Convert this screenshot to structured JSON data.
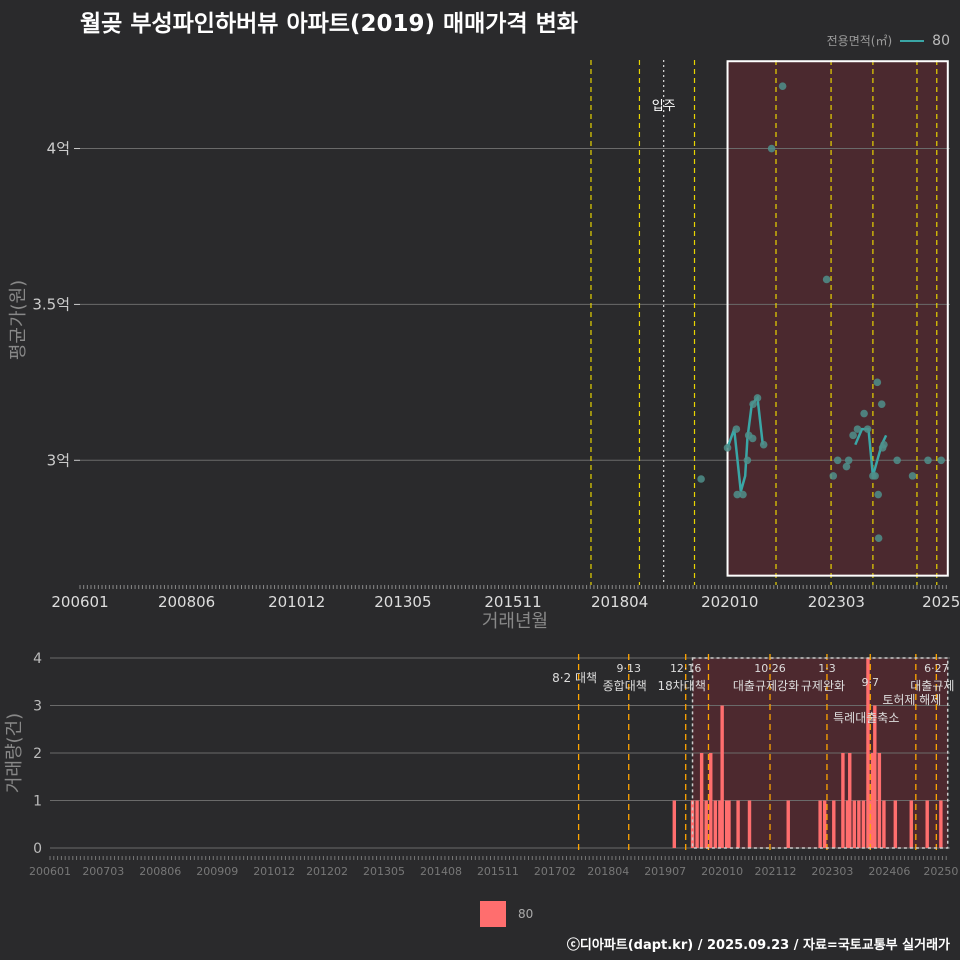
{
  "title": "월곶 부성파인하버뷰 아파트(2019) 매매가격 변화",
  "legend_top": {
    "title": "전용면적(㎡)",
    "value": "80"
  },
  "legend_bottom": {
    "value": "80"
  },
  "footer": "ⓒ디아파트(dapt.kr) / 2025.09.23 / 자료=국토교통부 실거래가",
  "colors": {
    "background": "#2a2a2c",
    "line": "#3aa6a6",
    "bar": "#ff6e6e",
    "policy_line": "#e8d400",
    "policy_line_bottom": "#ffa500",
    "highlight": "#5a2a30"
  },
  "chart_data": [
    {
      "type": "line",
      "title": "월곶 부성파인하버뷰 아파트(2019) 매매가격 변화",
      "xlabel": "거래년월",
      "ylabel": "평균가(원)",
      "x_ticks": [
        "200601",
        "200806",
        "201012",
        "201305",
        "201511",
        "201804",
        "202010",
        "202303",
        "2025"
      ],
      "y_ticks": [
        "3억",
        "3.5억",
        "4억"
      ],
      "y_tick_values": [
        3.0,
        3.5,
        4.0
      ],
      "ylim": [
        2.6,
        4.3
      ],
      "xlim": [
        2006.0,
        2025.75
      ],
      "annotation": "입주",
      "annotation_x": 2019.25,
      "policy_lines_x": [
        2017.6,
        2018.7,
        2019.95,
        2021.8,
        2023.05,
        2024.0,
        2025.0,
        2025.45
      ],
      "highlight_x": [
        2020.7,
        2025.7
      ],
      "highlight_y": [
        2.63,
        4.28
      ],
      "series": [
        {
          "name": "80",
          "points": [
            [
              2020.1,
              2.94
            ],
            [
              2020.7,
              3.04
            ],
            [
              2020.9,
              3.1
            ],
            [
              2020.92,
              2.89
            ],
            [
              2021.05,
              2.89
            ],
            [
              2021.15,
              3.0
            ],
            [
              2021.18,
              3.08
            ],
            [
              2021.27,
              3.07
            ],
            [
              2021.28,
              3.18
            ],
            [
              2021.38,
              3.2
            ],
            [
              2021.52,
              3.05
            ],
            [
              2021.7,
              4.0
            ],
            [
              2021.95,
              4.2
            ],
            [
              2022.95,
              3.58
            ],
            [
              2023.1,
              2.95
            ],
            [
              2023.2,
              3.0
            ],
            [
              2023.4,
              2.98
            ],
            [
              2023.45,
              3.0
            ],
            [
              2023.55,
              3.08
            ],
            [
              2023.65,
              3.1
            ],
            [
              2023.8,
              3.15
            ],
            [
              2023.88,
              3.1
            ],
            [
              2024.0,
              2.95
            ],
            [
              2024.05,
              2.95
            ],
            [
              2024.1,
              3.25
            ],
            [
              2024.12,
              2.89
            ],
            [
              2024.13,
              2.75
            ],
            [
              2024.2,
              3.18
            ],
            [
              2024.22,
              3.04
            ],
            [
              2024.25,
              3.05
            ],
            [
              2024.55,
              3.0
            ],
            [
              2024.9,
              2.95
            ],
            [
              2025.25,
              3.0
            ],
            [
              2025.55,
              3.0
            ]
          ],
          "line": [
            [
              2020.7,
              3.04
            ],
            [
              2020.85,
              3.1
            ],
            [
              2021.0,
              2.9
            ],
            [
              2021.1,
              2.95
            ],
            [
              2021.15,
              3.07
            ],
            [
              2021.25,
              3.18
            ],
            [
              2021.38,
              3.2
            ],
            [
              2021.5,
              3.05
            ]
          ],
          "line2": [
            [
              2023.6,
              3.05
            ],
            [
              2023.75,
              3.1
            ],
            [
              2023.9,
              3.1
            ],
            [
              2024.0,
              2.95
            ],
            [
              2024.1,
              3.0
            ],
            [
              2024.2,
              3.05
            ],
            [
              2024.3,
              3.08
            ]
          ]
        }
      ]
    },
    {
      "type": "bar",
      "ylabel": "거래량(건)",
      "x_ticks": [
        "200601",
        "200703",
        "200806",
        "200909",
        "201012",
        "201202",
        "201305",
        "201408",
        "201511",
        "201702",
        "201804",
        "201907",
        "202010",
        "202112",
        "202303",
        "202406",
        "20250"
      ],
      "y_ticks": [
        "0",
        "1",
        "2",
        "3",
        "4"
      ],
      "ylim": [
        0,
        4
      ],
      "xlim": [
        2006.0,
        2025.75
      ],
      "policy_lines_x": [
        2017.6,
        2018.7,
        2019.95,
        2020.45,
        2021.8,
        2023.05,
        2024.0,
        2025.0,
        2025.45
      ],
      "policy_labels": [
        {
          "x": 2017.6,
          "line1": "",
          "line2": "8·2 대책",
          "row": 1
        },
        {
          "x": 2018.7,
          "line1": "9·13",
          "line2": "종합대책",
          "row": 2
        },
        {
          "x": 2019.95,
          "line1": "12·16",
          "line2": "18차대책",
          "row": 2
        },
        {
          "x": 2021.8,
          "line1": "10·26",
          "line2": "대출규제강화",
          "row": 2
        },
        {
          "x": 2023.05,
          "line1": "1·3",
          "line2": "규제완화",
          "row": 2
        },
        {
          "x": 2024.0,
          "line1": "9·7",
          "line2": "특례대출축소",
          "row": 3
        },
        {
          "x": 2025.0,
          "line1": "",
          "line2": "토허제 해제",
          "row": 3
        },
        {
          "x": 2025.45,
          "line1": "6·27",
          "line2": "대출규제",
          "row": 2
        }
      ],
      "highlight_x": [
        2020.1,
        2025.7
      ],
      "highlight_y": [
        0,
        4
      ],
      "bars": [
        [
          2019.7,
          1
        ],
        [
          2020.1,
          1
        ],
        [
          2020.2,
          1
        ],
        [
          2020.3,
          2
        ],
        [
          2020.4,
          1
        ],
        [
          2020.5,
          2
        ],
        [
          2020.6,
          1
        ],
        [
          2020.7,
          1
        ],
        [
          2020.75,
          3
        ],
        [
          2020.85,
          1
        ],
        [
          2020.9,
          1
        ],
        [
          2021.1,
          1
        ],
        [
          2021.35,
          1
        ],
        [
          2022.2,
          1
        ],
        [
          2022.9,
          1
        ],
        [
          2023.0,
          1
        ],
        [
          2023.2,
          1
        ],
        [
          2023.4,
          2
        ],
        [
          2023.5,
          1
        ],
        [
          2023.55,
          2
        ],
        [
          2023.65,
          1
        ],
        [
          2023.75,
          1
        ],
        [
          2023.85,
          1
        ],
        [
          2023.95,
          4
        ],
        [
          2024.0,
          1
        ],
        [
          2024.05,
          2
        ],
        [
          2024.1,
          3
        ],
        [
          2024.2,
          2
        ],
        [
          2024.3,
          1
        ],
        [
          2024.55,
          1
        ],
        [
          2024.9,
          1
        ],
        [
          2025.25,
          1
        ],
        [
          2025.55,
          1
        ]
      ]
    }
  ]
}
